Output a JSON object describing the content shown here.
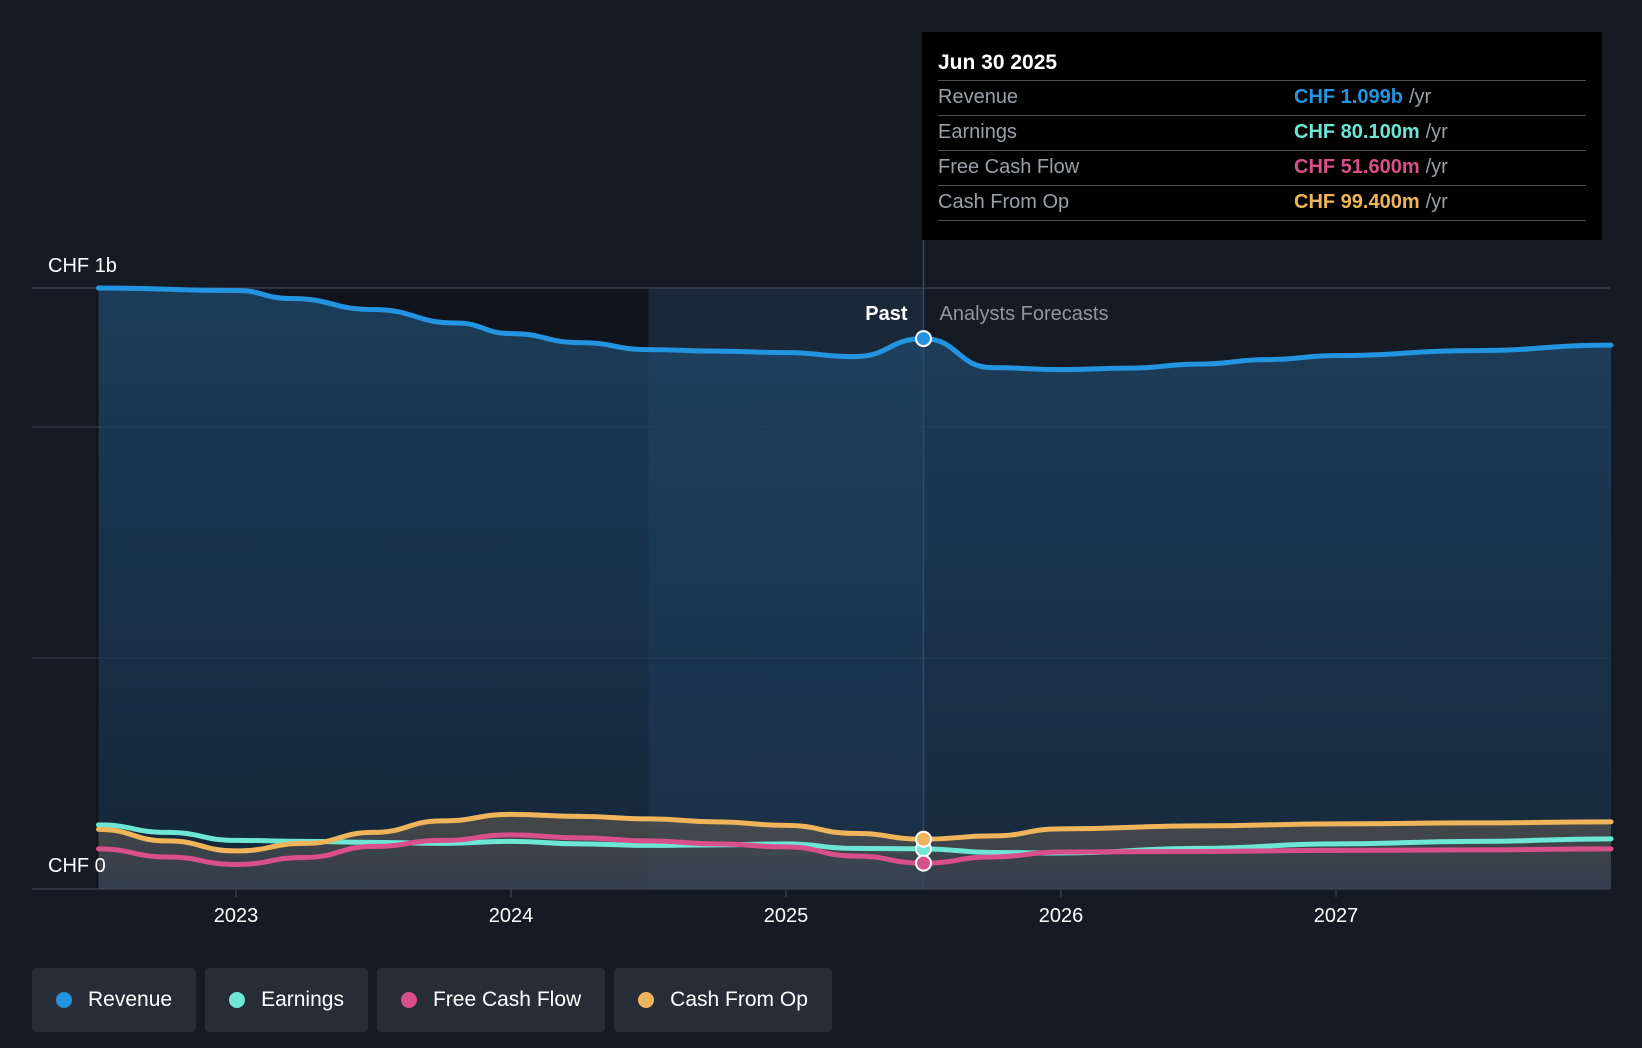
{
  "chart_data": {
    "type": "area",
    "currency": "CHF",
    "y_axis": {
      "top_label": "CHF 1b",
      "bottom_label": "CHF 0",
      "ylim": [
        0,
        1.2
      ],
      "unit": "b"
    },
    "x_axis": {
      "ticks": [
        "2023",
        "2024",
        "2025",
        "2026",
        "2027"
      ],
      "tick_values": [
        2023.0,
        2024.0,
        2025.0,
        2026.0,
        2027.0
      ],
      "xlim": [
        2022.5,
        2028.0
      ]
    },
    "sections": {
      "past_label": "Past",
      "forecast_label": "Analysts Forecasts",
      "divider_x": 2025.5,
      "past_highlight_start": 2024.5
    },
    "series": [
      {
        "name": "Revenue",
        "color": "#2394df",
        "points": [
          [
            2022.5,
            1.2
          ],
          [
            2023.0,
            1.195
          ],
          [
            2023.2,
            1.179
          ],
          [
            2023.5,
            1.157
          ],
          [
            2023.8,
            1.13
          ],
          [
            2024.0,
            1.109
          ],
          [
            2024.25,
            1.091
          ],
          [
            2024.5,
            1.077
          ],
          [
            2024.75,
            1.074
          ],
          [
            2025.0,
            1.071
          ],
          [
            2025.25,
            1.063
          ],
          [
            2025.5,
            1.099
          ],
          [
            2025.75,
            1.041
          ],
          [
            2026.0,
            1.037
          ],
          [
            2026.25,
            1.04
          ],
          [
            2026.5,
            1.048
          ],
          [
            2026.75,
            1.057
          ],
          [
            2027.0,
            1.065
          ],
          [
            2027.5,
            1.075
          ],
          [
            2028.0,
            1.086
          ]
        ]
      },
      {
        "name": "Earnings",
        "color": "#6de6d4",
        "points": [
          [
            2022.5,
            0.128
          ],
          [
            2022.75,
            0.113
          ],
          [
            2023.0,
            0.097
          ],
          [
            2023.25,
            0.095
          ],
          [
            2023.5,
            0.093
          ],
          [
            2023.75,
            0.091
          ],
          [
            2024.0,
            0.095
          ],
          [
            2024.25,
            0.09
          ],
          [
            2024.5,
            0.087
          ],
          [
            2024.75,
            0.088
          ],
          [
            2025.0,
            0.09
          ],
          [
            2025.25,
            0.081
          ],
          [
            2025.5,
            0.0801
          ],
          [
            2025.75,
            0.073
          ],
          [
            2026.0,
            0.072
          ],
          [
            2026.5,
            0.081
          ],
          [
            2027.0,
            0.09
          ],
          [
            2027.5,
            0.095
          ],
          [
            2028.0,
            0.1
          ]
        ]
      },
      {
        "name": "Free Cash Flow",
        "color": "#d94f8c",
        "points": [
          [
            2022.5,
            0.08
          ],
          [
            2022.75,
            0.064
          ],
          [
            2023.0,
            0.049
          ],
          [
            2023.25,
            0.063
          ],
          [
            2023.5,
            0.085
          ],
          [
            2023.75,
            0.097
          ],
          [
            2024.0,
            0.108
          ],
          [
            2024.25,
            0.102
          ],
          [
            2024.5,
            0.096
          ],
          [
            2024.75,
            0.09
          ],
          [
            2025.0,
            0.084
          ],
          [
            2025.25,
            0.066
          ],
          [
            2025.5,
            0.0516
          ],
          [
            2025.75,
            0.064
          ],
          [
            2026.0,
            0.074
          ],
          [
            2026.5,
            0.075
          ],
          [
            2027.0,
            0.077
          ],
          [
            2027.5,
            0.078
          ],
          [
            2028.0,
            0.08
          ]
        ]
      },
      {
        "name": "Cash From Op",
        "color": "#f0b45a",
        "points": [
          [
            2022.5,
            0.119
          ],
          [
            2022.75,
            0.096
          ],
          [
            2023.0,
            0.076
          ],
          [
            2023.25,
            0.091
          ],
          [
            2023.5,
            0.113
          ],
          [
            2023.75,
            0.136
          ],
          [
            2024.0,
            0.149
          ],
          [
            2024.25,
            0.145
          ],
          [
            2024.5,
            0.14
          ],
          [
            2024.75,
            0.134
          ],
          [
            2025.0,
            0.127
          ],
          [
            2025.25,
            0.111
          ],
          [
            2025.5,
            0.0994
          ],
          [
            2025.75,
            0.106
          ],
          [
            2026.0,
            0.12
          ],
          [
            2026.5,
            0.126
          ],
          [
            2027.0,
            0.13
          ],
          [
            2027.5,
            0.132
          ],
          [
            2028.0,
            0.134
          ]
        ]
      }
    ]
  },
  "tooltip": {
    "date": "Jun 30 2025",
    "rows": [
      {
        "label": "Revenue",
        "value": "CHF 1.099b",
        "unit": "/yr",
        "color": "#2394df"
      },
      {
        "label": "Earnings",
        "value": "CHF 80.100m",
        "unit": "/yr",
        "color": "#6de6d4"
      },
      {
        "label": "Free Cash Flow",
        "value": "CHF 51.600m",
        "unit": "/yr",
        "color": "#d94f8c"
      },
      {
        "label": "Cash From Op",
        "value": "CHF 99.400m",
        "unit": "/yr",
        "color": "#f0b45a"
      }
    ]
  },
  "legend": [
    {
      "label": "Revenue",
      "color": "#2394df"
    },
    {
      "label": "Earnings",
      "color": "#6de6d4"
    },
    {
      "label": "Free Cash Flow",
      "color": "#d94f8c"
    },
    {
      "label": "Cash From Op",
      "color": "#f0b45a"
    }
  ]
}
